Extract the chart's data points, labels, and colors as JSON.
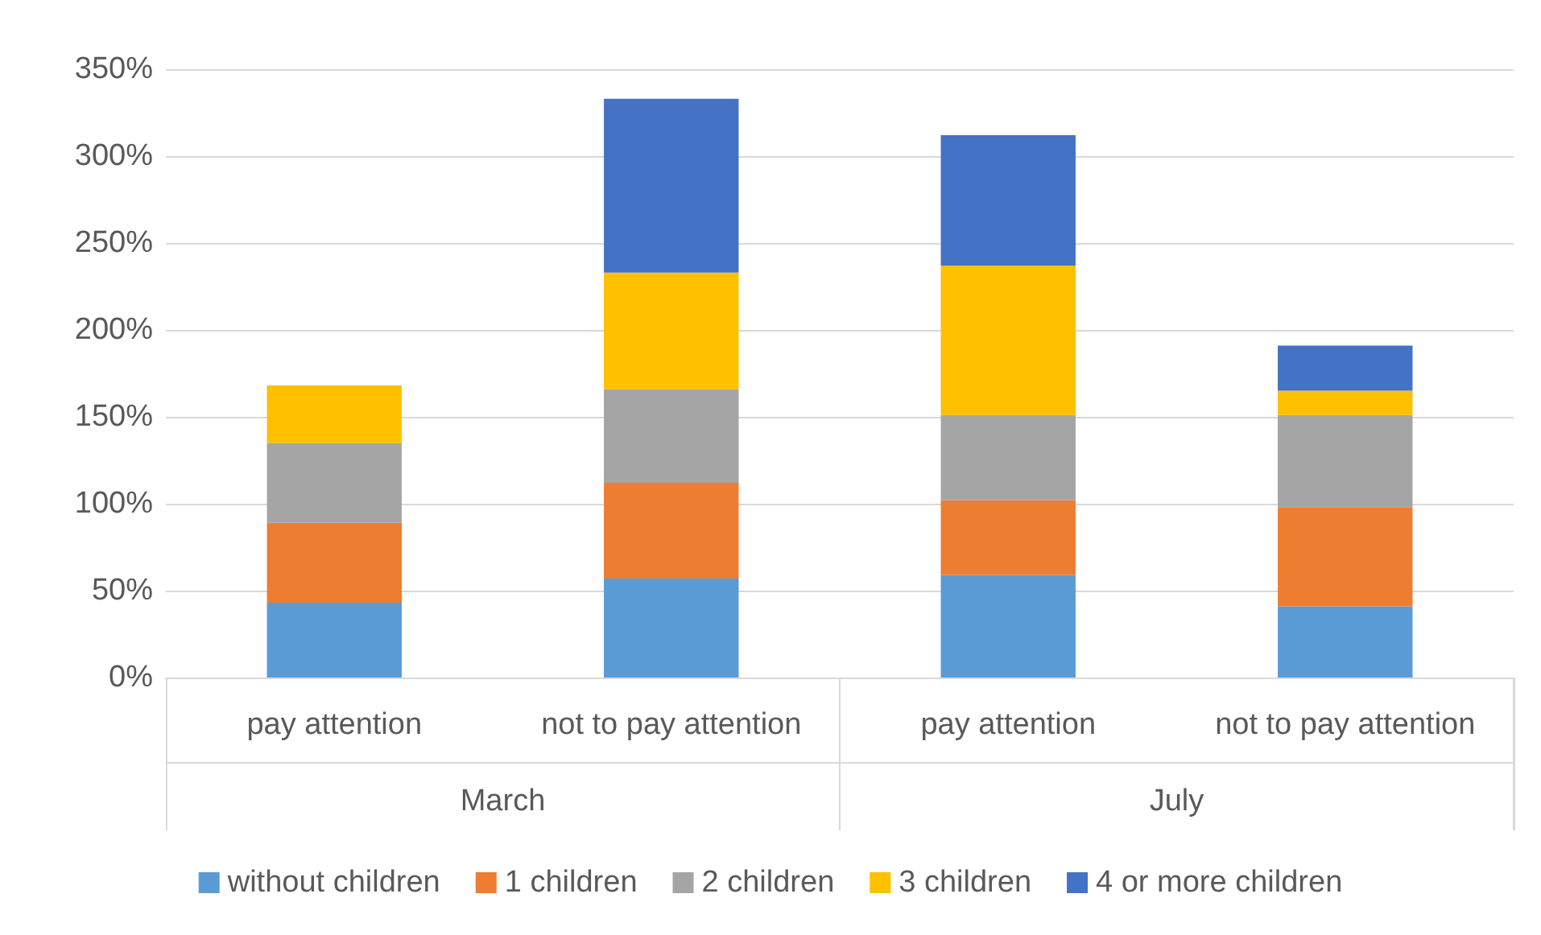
{
  "chart_data": {
    "type": "bar",
    "stacked": true,
    "categories": [
      "pay attention",
      "not to pay attention",
      "pay attention",
      "not to pay attention"
    ],
    "series": [
      {
        "name": "without children",
        "color": "#5b9bd5",
        "values": [
          43,
          57,
          59,
          41
        ]
      },
      {
        "name": "1 children",
        "color": "#ed7d31",
        "values": [
          46,
          55,
          43,
          57
        ]
      },
      {
        "name": "2 children",
        "color": "#a5a5a5",
        "values": [
          46,
          54,
          49,
          53
        ]
      },
      {
        "name": "3 children",
        "color": "#ffc000",
        "values": [
          33,
          67,
          86,
          14
        ]
      },
      {
        "name": "4 or more children",
        "color": "#4472c4",
        "values": [
          null,
          100,
          75,
          26
        ]
      }
    ],
    "annotations": [
      "March",
      "July"
    ],
    "ylim": [
      0,
      350
    ],
    "yticks": [
      {
        "value": 0,
        "label": "0%"
      },
      {
        "value": 50,
        "label": "50%"
      },
      {
        "value": 100,
        "label": "100%"
      },
      {
        "value": 150,
        "label": "150%"
      },
      {
        "value": 200,
        "label": "200%"
      },
      {
        "value": 250,
        "label": "250%"
      },
      {
        "value": 300,
        "label": "300%"
      },
      {
        "value": 350,
        "label": "350%"
      }
    ],
    "grid": "y",
    "legend": "bottom"
  }
}
